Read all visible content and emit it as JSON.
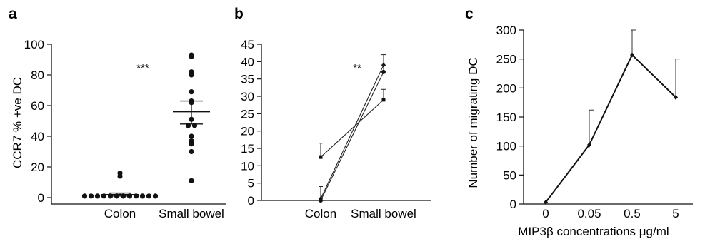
{
  "chart_data": [
    {
      "panel": "a",
      "type": "scatter",
      "ylabel": "CCR7 % +ve DC",
      "xlabel": "",
      "ylim": [
        0,
        100
      ],
      "yticks": [
        "0",
        "20",
        "40",
        "60",
        "80",
        "100"
      ],
      "categories": [
        "Colon",
        "Small bowel"
      ],
      "annotation": "***",
      "groups": [
        {
          "category": "Colon",
          "values": [
            16,
            14,
            1,
            1,
            1,
            1,
            1,
            1,
            1,
            1,
            1,
            1,
            1,
            1
          ],
          "mean": 2,
          "sem_low": 1,
          "sem_high": 3
        },
        {
          "category": "Small bowel",
          "values": [
            93,
            92,
            82,
            80,
            69,
            63,
            62,
            51,
            47,
            47,
            40,
            37,
            35,
            30,
            11
          ],
          "mean": 56,
          "sem_low": 48,
          "sem_high": 63
        }
      ]
    },
    {
      "panel": "b",
      "type": "line",
      "ylim": [
        0,
        45
      ],
      "yticks": [
        "0",
        "5",
        "10",
        "15",
        "20",
        "25",
        "30",
        "35",
        "40",
        "45"
      ],
      "categories": [
        "Colon",
        "Small bowel"
      ],
      "annotation": "**",
      "series": [
        {
          "values": [
            12.5,
            29
          ],
          "errors": [
            4,
            3
          ],
          "marker": "square"
        },
        {
          "values": [
            0.5,
            39
          ],
          "errors": [
            3.5,
            3
          ],
          "marker": "diamond"
        },
        {
          "values": [
            0,
            37
          ],
          "errors": [
            0,
            2
          ],
          "marker": "circle"
        }
      ]
    },
    {
      "panel": "c",
      "type": "line",
      "ylabel": "Number of migrating DC",
      "xlabel": "MIP3β concentrations μg/ml",
      "ylim": [
        0,
        300
      ],
      "yticks": [
        "0",
        "50",
        "100",
        "150",
        "200",
        "250",
        "300"
      ],
      "categories": [
        "0",
        "0.05",
        "0.5",
        "5"
      ],
      "series": [
        {
          "values": [
            3,
            102,
            257,
            184
          ],
          "errors": [
            0,
            60,
            43,
            66
          ]
        }
      ]
    }
  ]
}
